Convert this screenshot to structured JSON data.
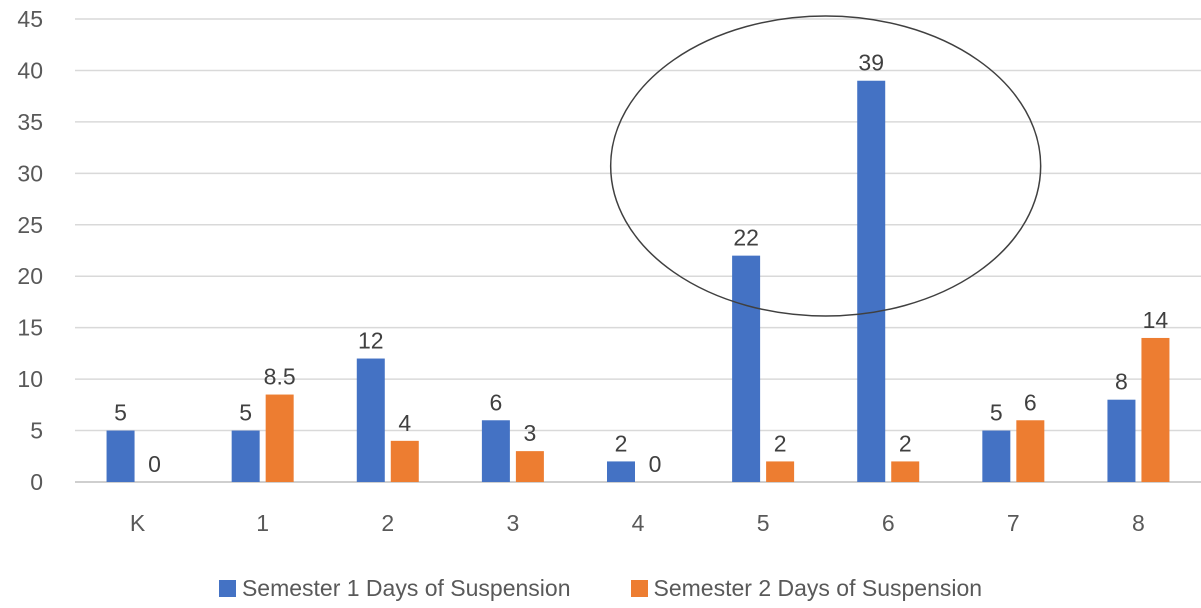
{
  "chart_data": {
    "type": "bar",
    "categories": [
      "K",
      "1",
      "2",
      "3",
      "4",
      "5",
      "6",
      "7",
      "8"
    ],
    "series": [
      {
        "name": "Semester 1 Days of Suspension",
        "color": "#4472C4",
        "values": [
          5,
          5,
          12,
          6,
          2,
          22,
          39,
          5,
          8
        ],
        "labels": [
          "5",
          "5",
          "12",
          "6",
          "2",
          "22",
          "39",
          "5",
          "8"
        ]
      },
      {
        "name": "Semester 2 Days of Suspension",
        "color": "#ED7D31",
        "values": [
          0,
          8.5,
          4,
          3,
          0,
          2,
          2,
          6,
          14
        ],
        "labels": [
          "0",
          "8.5",
          "4",
          "3",
          "0",
          "2",
          "2",
          "6",
          "14"
        ]
      }
    ],
    "yticks": [
      "0",
      "5",
      "10",
      "15",
      "20",
      "25",
      "30",
      "35",
      "40",
      "45"
    ],
    "ylim": [
      0,
      45
    ],
    "grid": true,
    "legend_position": "bottom",
    "annotation": {
      "shape": "ellipse",
      "around_categories": [
        "5",
        "6"
      ]
    }
  }
}
